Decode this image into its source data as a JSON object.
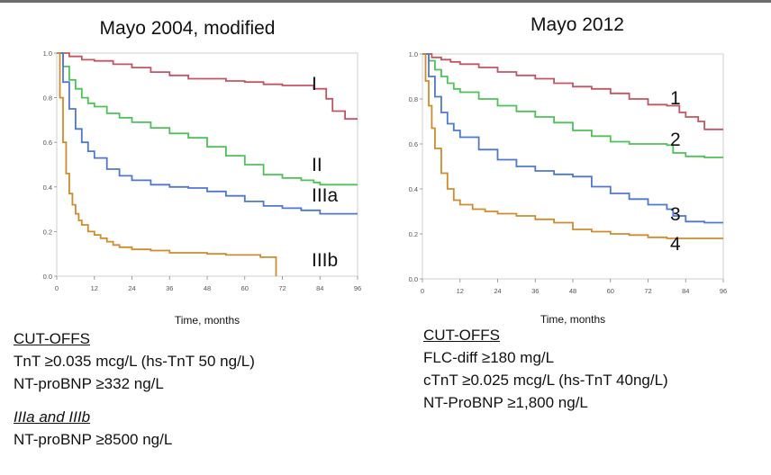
{
  "chart_data": [
    {
      "type": "line",
      "subtype": "step",
      "title": "Mayo 2004, modified",
      "xlabel": "Time, months",
      "ylabel": "",
      "xlim": [
        0,
        96
      ],
      "ylim": [
        0,
        1
      ],
      "xticks": [
        "0",
        "12",
        "24",
        "36",
        "48",
        "60",
        "72",
        "84",
        "96"
      ],
      "yticks": [
        "0.0",
        "0.2",
        "0.4",
        "0.6",
        "0.8",
        "1.0"
      ],
      "grid": false,
      "legend": "none",
      "series": [
        {
          "name": "I",
          "color": "#c25563",
          "x": [
            0,
            4,
            8,
            12,
            18,
            24,
            30,
            36,
            42,
            48,
            54,
            60,
            66,
            72,
            78,
            82,
            86,
            88,
            92,
            96
          ],
          "y": [
            1.0,
            0.985,
            0.97,
            0.965,
            0.95,
            0.935,
            0.915,
            0.9,
            0.885,
            0.885,
            0.875,
            0.87,
            0.86,
            0.855,
            0.855,
            0.84,
            0.795,
            0.74,
            0.705,
            0.705
          ]
        },
        {
          "name": "II",
          "color": "#4fc159",
          "x": [
            0,
            2,
            4,
            6,
            8,
            10,
            12,
            16,
            20,
            24,
            30,
            36,
            42,
            48,
            54,
            60,
            66,
            72,
            78,
            82,
            84,
            90,
            96
          ],
          "y": [
            1.0,
            0.94,
            0.88,
            0.84,
            0.8,
            0.775,
            0.76,
            0.73,
            0.71,
            0.69,
            0.665,
            0.64,
            0.62,
            0.58,
            0.54,
            0.5,
            0.455,
            0.44,
            0.43,
            0.42,
            0.41,
            0.41,
            0.41
          ]
        },
        {
          "name": "IIIa",
          "color": "#4e78cf",
          "x": [
            0,
            2,
            4,
            6,
            8,
            10,
            12,
            16,
            20,
            24,
            30,
            36,
            42,
            48,
            54,
            60,
            66,
            72,
            78,
            84,
            90,
            96
          ],
          "y": [
            1.0,
            0.87,
            0.75,
            0.66,
            0.6,
            0.56,
            0.53,
            0.48,
            0.45,
            0.43,
            0.41,
            0.4,
            0.395,
            0.38,
            0.36,
            0.335,
            0.315,
            0.305,
            0.295,
            0.28,
            0.28,
            0.28
          ]
        },
        {
          "name": "IIIb",
          "color": "#cf8c2c",
          "x": [
            0,
            1,
            2,
            3,
            4,
            5,
            6,
            7,
            8,
            10,
            12,
            14,
            16,
            18,
            20,
            24,
            30,
            36,
            48,
            54,
            60,
            65,
            68,
            70
          ],
          "y": [
            1.0,
            0.8,
            0.6,
            0.46,
            0.37,
            0.32,
            0.28,
            0.25,
            0.23,
            0.2,
            0.185,
            0.17,
            0.155,
            0.14,
            0.13,
            0.12,
            0.115,
            0.105,
            0.1,
            0.095,
            0.095,
            0.085,
            0.085,
            0.0
          ]
        }
      ]
    },
    {
      "type": "line",
      "subtype": "step",
      "title": "Mayo 2012",
      "xlabel": "Time, months",
      "ylabel": "",
      "xlim": [
        0,
        96
      ],
      "ylim": [
        0,
        1
      ],
      "xticks": [
        "0",
        "12",
        "24",
        "36",
        "48",
        "60",
        "72",
        "84",
        "96"
      ],
      "yticks": [
        "0.0",
        "0.2",
        "0.4",
        "0.6",
        "0.8",
        "1.0"
      ],
      "grid": false,
      "legend": "none",
      "series": [
        {
          "name": "1",
          "color": "#c25563",
          "x": [
            0,
            3,
            6,
            9,
            12,
            18,
            24,
            30,
            36,
            42,
            48,
            54,
            60,
            66,
            72,
            78,
            82,
            84,
            88,
            90,
            96
          ],
          "y": [
            1.0,
            0.985,
            0.975,
            0.965,
            0.955,
            0.94,
            0.92,
            0.905,
            0.89,
            0.87,
            0.855,
            0.845,
            0.825,
            0.8,
            0.775,
            0.77,
            0.74,
            0.72,
            0.7,
            0.665,
            0.665
          ]
        },
        {
          "name": "2",
          "color": "#4fc159",
          "x": [
            0,
            2,
            4,
            6,
            8,
            10,
            12,
            18,
            24,
            30,
            36,
            42,
            48,
            54,
            60,
            66,
            72,
            78,
            80,
            84,
            90,
            96
          ],
          "y": [
            1.0,
            0.97,
            0.93,
            0.9,
            0.87,
            0.845,
            0.83,
            0.8,
            0.77,
            0.745,
            0.72,
            0.695,
            0.66,
            0.635,
            0.61,
            0.6,
            0.6,
            0.595,
            0.56,
            0.545,
            0.54,
            0.54
          ]
        },
        {
          "name": "3",
          "color": "#4e78cf",
          "x": [
            0,
            2,
            4,
            6,
            8,
            10,
            12,
            18,
            24,
            30,
            36,
            42,
            48,
            54,
            60,
            66,
            72,
            78,
            80,
            84,
            90,
            96
          ],
          "y": [
            1.0,
            0.9,
            0.81,
            0.74,
            0.69,
            0.66,
            0.63,
            0.575,
            0.53,
            0.5,
            0.48,
            0.465,
            0.455,
            0.41,
            0.38,
            0.355,
            0.33,
            0.31,
            0.28,
            0.255,
            0.25,
            0.25
          ]
        },
        {
          "name": "4",
          "color": "#cf8c2c",
          "x": [
            0,
            1,
            2,
            3,
            4,
            6,
            8,
            10,
            12,
            16,
            20,
            24,
            30,
            36,
            42,
            48,
            54,
            60,
            66,
            72,
            78,
            84,
            90,
            96
          ],
          "y": [
            1.0,
            0.88,
            0.77,
            0.67,
            0.58,
            0.47,
            0.4,
            0.35,
            0.33,
            0.31,
            0.3,
            0.29,
            0.28,
            0.265,
            0.25,
            0.22,
            0.21,
            0.2,
            0.195,
            0.185,
            0.18,
            0.18,
            0.18,
            0.18
          ]
        }
      ]
    }
  ],
  "cutoffs_left": {
    "heading": "CUT-OFFS",
    "line1": "TnT ≥0.035 mcg/L (hs-TnT 50 ng/L)",
    "line2": "NT-proBNP ≥332 ng/L",
    "subheading": "IIIa and IIIb",
    "line3": "NT-proBNP ≥8500 ng/L"
  },
  "cutoffs_right": {
    "heading": "CUT-OFFS",
    "line1": "FLC-diff ≥180 mg/L",
    "line2": "cTnT ≥0.025 mcg/L (hs-TnT 40ng/L)",
    "line3": "NT-ProBNP ≥1,800 ng/L"
  }
}
